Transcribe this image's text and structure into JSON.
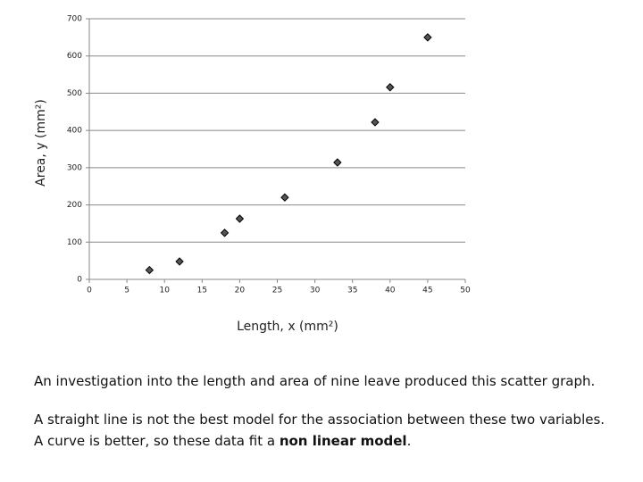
{
  "chart_data": {
    "type": "scatter",
    "x_label": "Length, x (mm²)",
    "y_label": "Area, y (mm²)",
    "x": [
      8,
      12,
      18,
      20,
      26,
      33,
      38,
      40,
      45
    ],
    "values": [
      25,
      48,
      125,
      163,
      220,
      314,
      422,
      516,
      650
    ],
    "color": "#555555",
    "xlim": [
      0,
      50
    ],
    "xticks": [
      0,
      5,
      10,
      15,
      20,
      25,
      30,
      35,
      40,
      45,
      50
    ],
    "ylim": [
      0,
      700
    ],
    "yticks": [
      0,
      100,
      200,
      300,
      400,
      500,
      600,
      700
    ],
    "grid": true
  },
  "text": {
    "paragraph_1": "An investigation into the length and area of nine leave produced this scatter graph.",
    "paragraph_2": {
      "before": "A straight line is not the best model for the association between these two variables. A curve is better, so these data fit a ",
      "bold": "non linear model",
      "after": "."
    }
  }
}
